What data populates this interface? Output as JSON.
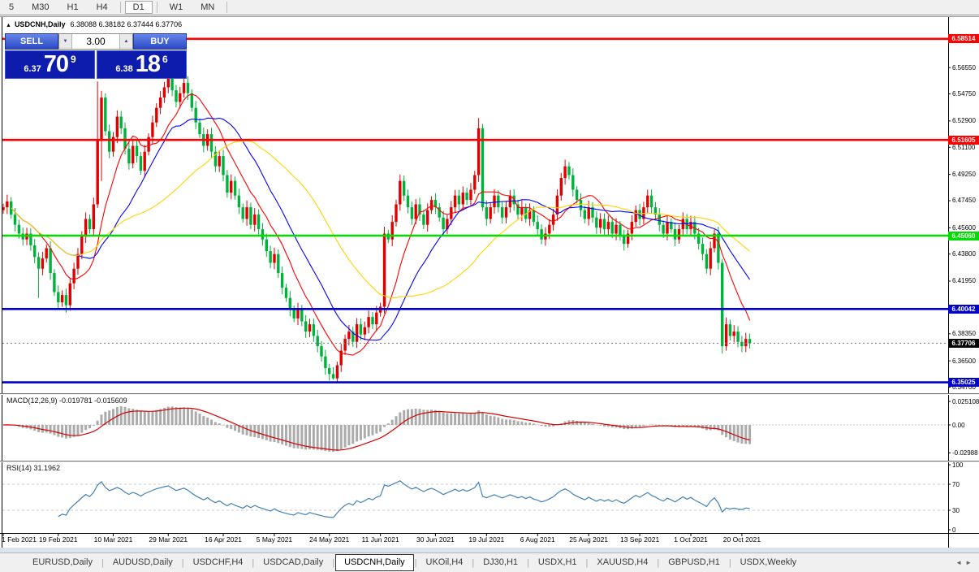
{
  "toolbar": {
    "buttons": [
      {
        "label": "5",
        "active": false,
        "sep_after": false
      },
      {
        "label": "M30",
        "active": false,
        "sep_after": false
      },
      {
        "label": "H1",
        "active": false,
        "sep_after": false
      },
      {
        "label": "H4",
        "active": false,
        "sep_after": true
      },
      {
        "label": "D1",
        "active": true,
        "sep_after": true
      },
      {
        "label": "W1",
        "active": false,
        "sep_after": false
      },
      {
        "label": "MN",
        "active": false,
        "sep_after": true
      }
    ]
  },
  "chart": {
    "title": "USDCNH,Daily",
    "quotes_text": "6.38088 6.38182 6.37444 6.37706",
    "quotes": {
      "open": "6.38088",
      "high": "6.38182",
      "low": "6.37444",
      "close": "6.37706"
    }
  },
  "icons": {
    "arrow_down": "▼",
    "arrow_up": "▲",
    "expand_tri": "▲",
    "tabs_left": "◄",
    "tabs_right": "►"
  },
  "trade_panel": {
    "sell_label": "SELL",
    "buy_label": "BUY",
    "volume": "3.00",
    "sell": {
      "small": "6.37",
      "big": "70",
      "sup": "9"
    },
    "buy": {
      "small": "6.38",
      "big": "18",
      "sup": "6"
    }
  },
  "chart_data": {
    "type": "candlestick",
    "symbol": "USDCNH",
    "timeframe": "Daily",
    "up_color": "#e00000",
    "down_color": "#00b23c",
    "first_open": 6.468,
    "closes": [
      6.47,
      6.474,
      6.465,
      6.458,
      6.452,
      6.448,
      6.452,
      6.444,
      6.436,
      6.428,
      6.435,
      6.442,
      6.425,
      6.412,
      6.405,
      6.41,
      6.403,
      6.418,
      6.428,
      6.438,
      6.45,
      6.462,
      6.455,
      6.472,
      6.516,
      6.545,
      6.522,
      6.508,
      6.518,
      6.532,
      6.524,
      6.51,
      6.5,
      6.512,
      6.505,
      6.495,
      6.508,
      6.518,
      6.528,
      6.538,
      6.545,
      6.552,
      6.558,
      6.55,
      6.542,
      6.548,
      6.555,
      6.548,
      6.538,
      6.528,
      6.52,
      6.512,
      6.52,
      6.508,
      6.498,
      6.505,
      6.492,
      6.48,
      6.488,
      6.478,
      6.47,
      6.462,
      6.47,
      6.458,
      6.465,
      6.455,
      6.448,
      6.44,
      6.432,
      6.438,
      6.425,
      6.415,
      6.408,
      6.4,
      6.394,
      6.4,
      6.392,
      6.385,
      6.39,
      6.382,
      6.375,
      6.368,
      6.36,
      6.356,
      6.353,
      6.362,
      6.372,
      6.38,
      6.385,
      6.378,
      6.39,
      6.383,
      6.388,
      6.395,
      6.39,
      6.398,
      6.402,
      6.452,
      6.448,
      6.46,
      6.472,
      6.488,
      6.478,
      6.47,
      6.462,
      6.472,
      6.465,
      6.458,
      6.468,
      6.475,
      6.47,
      6.463,
      6.455,
      6.462,
      6.47,
      6.478,
      6.472,
      6.48,
      6.475,
      6.482,
      6.492,
      6.524,
      6.47,
      6.462,
      6.47,
      6.478,
      6.47,
      6.463,
      6.47,
      6.478,
      6.472,
      6.465,
      6.47,
      6.462,
      6.468,
      6.46,
      6.455,
      6.448,
      6.452,
      6.458,
      6.465,
      6.478,
      6.49,
      6.498,
      6.492,
      6.482,
      6.475,
      6.468,
      6.462,
      6.47,
      6.463,
      6.456,
      6.462,
      6.455,
      6.46,
      6.452,
      6.458,
      6.45,
      6.445,
      6.452,
      6.46,
      6.468,
      6.462,
      6.47,
      6.478,
      6.47,
      6.465,
      6.458,
      6.452,
      6.46,
      6.455,
      6.448,
      6.455,
      6.462,
      6.455,
      6.46,
      6.452,
      6.445,
      6.438,
      6.428,
      6.442,
      6.452,
      6.432,
      6.375,
      6.39,
      6.382,
      6.385,
      6.378,
      6.375,
      6.38,
      6.377
    ],
    "wick_overrides": {
      "9": {
        "l": 6.408
      },
      "16": {
        "l": 6.398
      },
      "24": {
        "h": 6.556
      },
      "25": {
        "l": 6.488
      },
      "42": {
        "h": 6.561
      },
      "46": {
        "h": 6.559
      },
      "83": {
        "l": 6.3515
      },
      "84": {
        "l": 6.352
      },
      "121": {
        "h": 6.531
      },
      "122": {
        "h": 6.527
      },
      "183": {
        "l": 6.37
      },
      "184": {
        "l": 6.372
      }
    },
    "moving_averages": [
      {
        "period": 10,
        "color": "#ff0000"
      },
      {
        "period": 20,
        "color": "#0000ff"
      },
      {
        "period": 40,
        "color": "#ffd400"
      }
    ],
    "levels": [
      {
        "price": 6.58514,
        "label": "6.58514",
        "color": "#ff0000"
      },
      {
        "price": 6.51605,
        "label": "6.51605",
        "color": "#ff0000"
      },
      {
        "price": 6.4506,
        "label": "6.45060",
        "color": "#00dd00"
      },
      {
        "price": 6.40042,
        "label": "6.40042",
        "color": "#0000cc"
      },
      {
        "price": 6.35025,
        "label": "6.35025",
        "color": "#0000cc"
      }
    ],
    "current_price": {
      "price": 6.37706,
      "label": "6.37706",
      "bg": "#000000"
    },
    "price_ticks": [
      "6.56550",
      "6.54750",
      "6.52900",
      "6.51100",
      "6.49250",
      "6.47450",
      "6.45600",
      "6.43800",
      "6.41950",
      "6.38350",
      "6.36500",
      "6.34700"
    ],
    "x_ticks": [
      {
        "label": "1 Feb 2021",
        "i": 0
      },
      {
        "label": "19 Feb 2021",
        "i": 14
      },
      {
        "label": "10 Mar 2021",
        "i": 28
      },
      {
        "label": "29 Mar 2021",
        "i": 42
      },
      {
        "label": "16 Apr 2021",
        "i": 56
      },
      {
        "label": "5 May 2021",
        "i": 69
      },
      {
        "label": "24 May 2021",
        "i": 83
      },
      {
        "label": "11 Jun 2021",
        "i": 96
      },
      {
        "label": "30 Jun 2021",
        "i": 110
      },
      {
        "label": "19 Jul 2021",
        "i": 123
      },
      {
        "label": "6 Aug 2021",
        "i": 136
      },
      {
        "label": "25 Aug 2021",
        "i": 149
      },
      {
        "label": "13 Sep 2021",
        "i": 162
      },
      {
        "label": "1 Oct 2021",
        "i": 175
      },
      {
        "label": "20 Oct 2021",
        "i": 188
      }
    ],
    "indicators": {
      "macd": {
        "name": "MACD(12,26,9)",
        "values_text": "-0.019781 -0.015609",
        "histogram_color": "#ababab",
        "signal_color": "#d40000",
        "axis": [
          {
            "label": "0.025108",
            "v": 0.025108
          },
          {
            "label": "0.00",
            "v": 0
          },
          {
            "label": "-0.02988",
            "v": -0.02988
          }
        ]
      },
      "rsi": {
        "name": "RSI(14)",
        "value_text": "31.1962",
        "line_color": "#4381b5",
        "axis": [
          {
            "label": "100",
            "v": 100
          },
          {
            "label": "70",
            "v": 70
          },
          {
            "label": "30",
            "v": 30
          },
          {
            "label": "0",
            "v": 0
          }
        ],
        "dashed_levels": [
          70,
          30
        ]
      }
    }
  },
  "tabs": {
    "items": [
      {
        "label": "EURUSD,Daily",
        "active": false
      },
      {
        "label": "AUDUSD,Daily",
        "active": false
      },
      {
        "label": "USDCHF,H4",
        "active": false
      },
      {
        "label": "USDCAD,Daily",
        "active": false
      },
      {
        "label": "USDCNH,Daily",
        "active": true
      },
      {
        "label": "UKOil,H4",
        "active": false
      },
      {
        "label": "DJ30,H1",
        "active": false
      },
      {
        "label": "USDX,H1",
        "active": false
      },
      {
        "label": "XAUUSD,H4",
        "active": false
      },
      {
        "label": "GBPUSD,H1",
        "active": false
      },
      {
        "label": "USDX,Weekly",
        "active": false
      }
    ]
  }
}
